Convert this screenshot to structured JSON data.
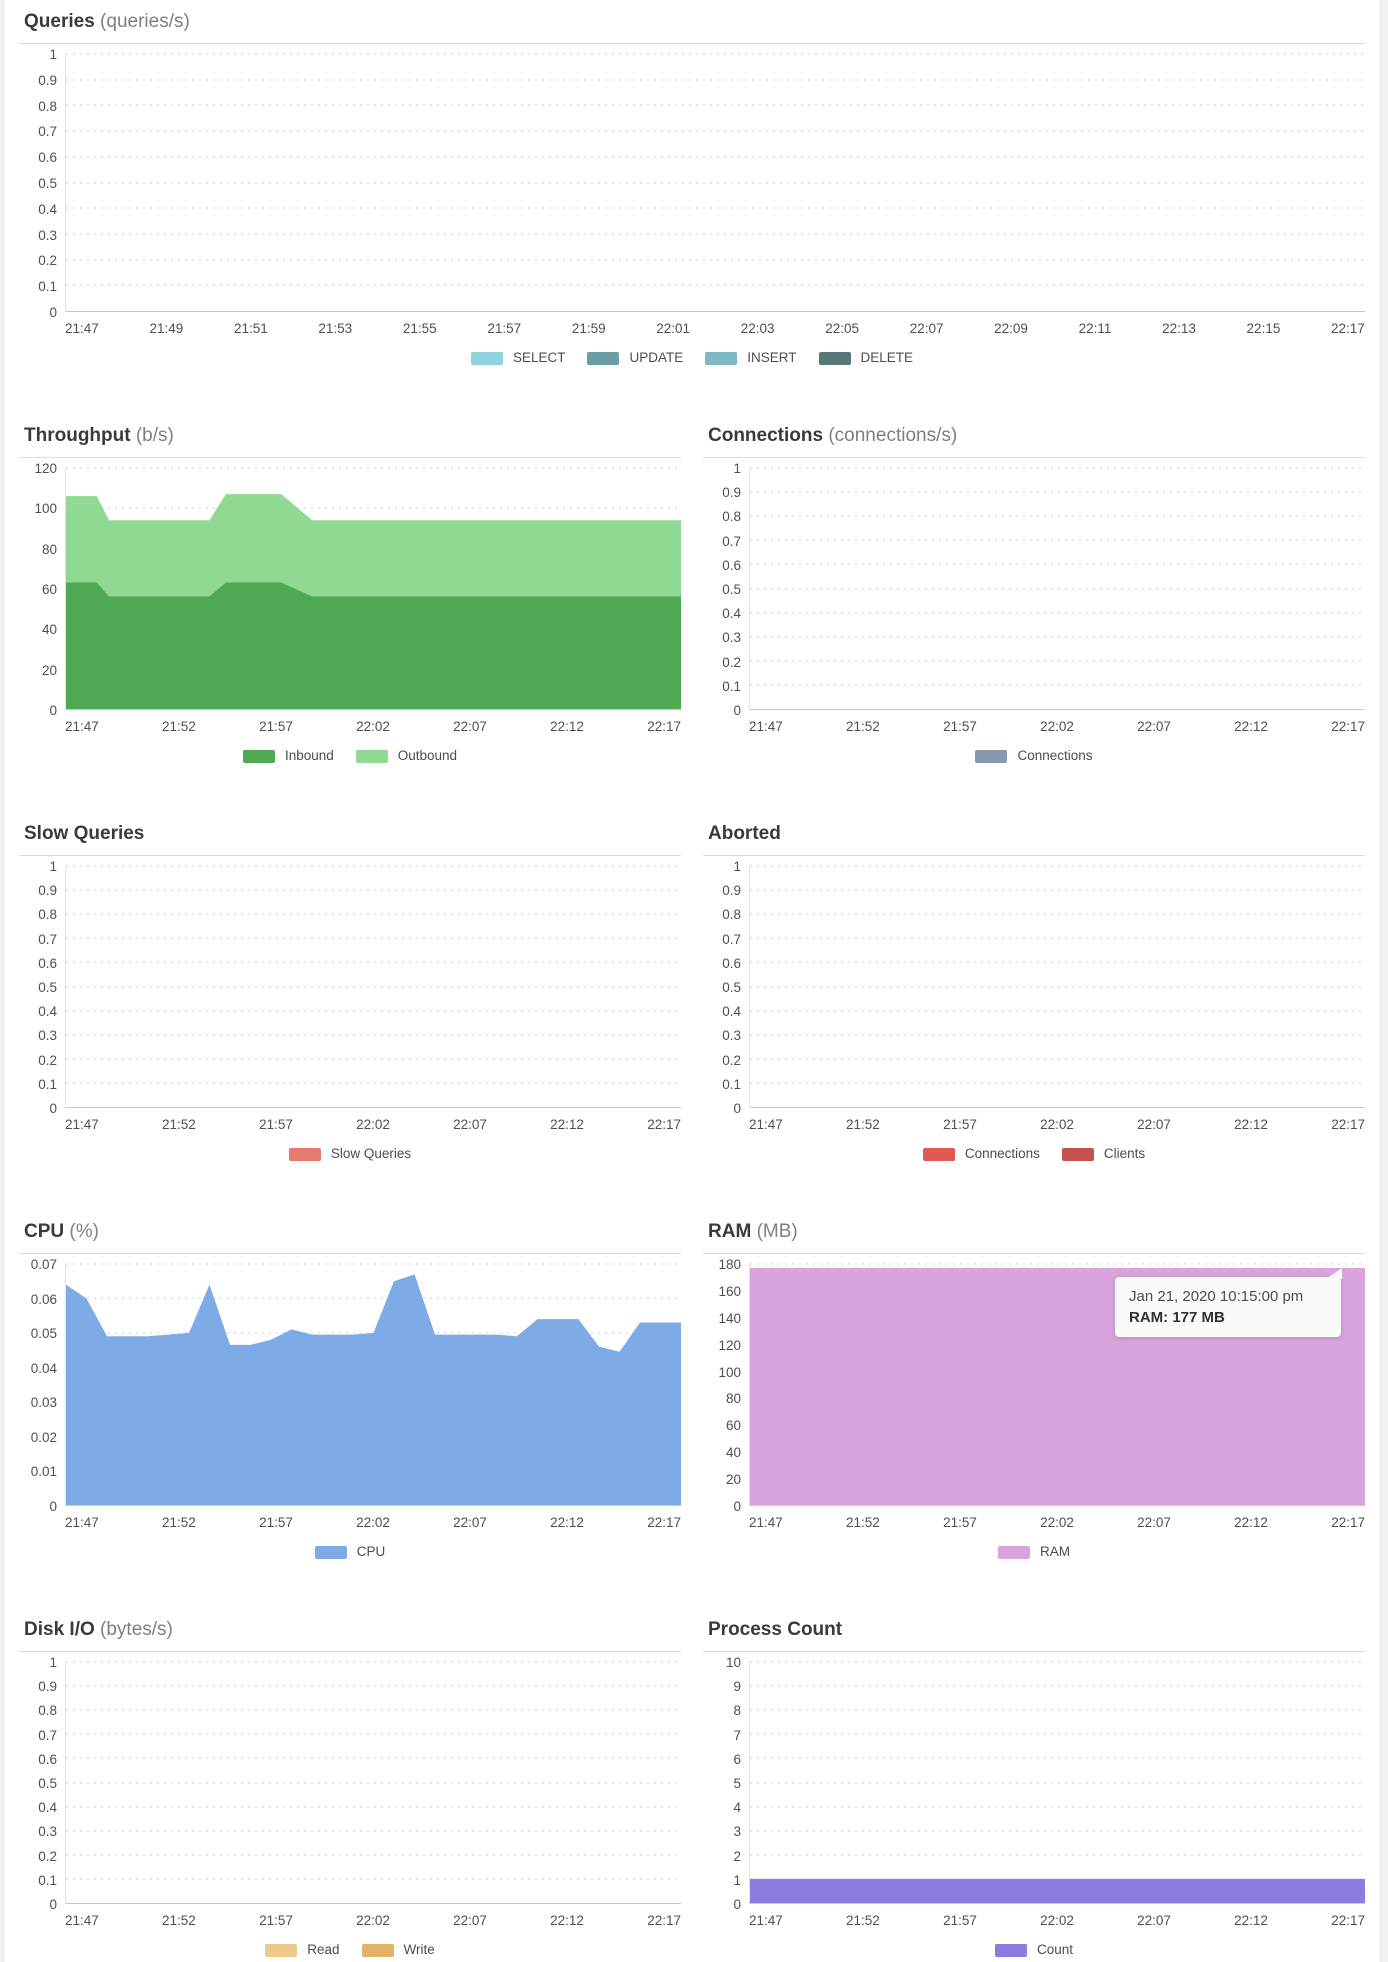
{
  "tooltip": {
    "line1": "Jan 21, 2020 10:15:00 pm",
    "line2": "RAM: 177 MB"
  },
  "chart_data": [
    {
      "id": "queries",
      "type": "area",
      "title": "Queries",
      "subtitle": "(queries/s)",
      "full_width": true,
      "grid": "dotted-horizontal",
      "legend_position": "bottom-center",
      "ylim": [
        0,
        1
      ],
      "y_ticks": [
        "1",
        "0.9",
        "0.8",
        "0.7",
        "0.6",
        "0.5",
        "0.4",
        "0.3",
        "0.2",
        "0.1",
        "0"
      ],
      "x_labels": [
        "21:47",
        "21:49",
        "21:51",
        "21:53",
        "21:55",
        "21:57",
        "21:59",
        "22:01",
        "22:03",
        "22:05",
        "22:07",
        "22:09",
        "22:11",
        "22:13",
        "22:15",
        "22:17"
      ],
      "x_range": [
        0,
        30
      ],
      "x": [],
      "series": [
        {
          "name": "SELECT",
          "color": "#8ed3dd",
          "values": []
        },
        {
          "name": "UPDATE",
          "color": "#6b9da6",
          "values": []
        },
        {
          "name": "INSERT",
          "color": "#7db9c3",
          "values": []
        },
        {
          "name": "DELETE",
          "color": "#587779",
          "values": []
        }
      ]
    },
    {
      "id": "throughput",
      "type": "area",
      "title": "Throughput",
      "subtitle": "(b/s)",
      "stacked": true,
      "grid": "dotted-horizontal",
      "legend_position": "bottom-center",
      "ylim": [
        0,
        120
      ],
      "y_ticks": [
        "120",
        "100",
        "80",
        "60",
        "40",
        "20",
        "0"
      ],
      "x_labels": [
        "21:47",
        "21:52",
        "21:57",
        "22:02",
        "22:07",
        "22:12",
        "22:17"
      ],
      "x_range": [
        0,
        30
      ],
      "x": [
        0,
        1.5,
        2.1,
        7,
        7.8,
        10.5,
        12,
        30
      ],
      "series": [
        {
          "name": "Inbound",
          "color": "#4fa953",
          "values": [
            63,
            63,
            56,
            56,
            63,
            63,
            56,
            56
          ]
        },
        {
          "name": "Outbound",
          "color": "#8fd992",
          "values": [
            43,
            43,
            38,
            38,
            44,
            44,
            38,
            38
          ]
        }
      ]
    },
    {
      "id": "connections",
      "type": "area",
      "title": "Connections",
      "subtitle": "(connections/s)",
      "grid": "dotted-horizontal",
      "legend_position": "bottom-center",
      "ylim": [
        0,
        1
      ],
      "y_ticks": [
        "1",
        "0.9",
        "0.8",
        "0.7",
        "0.6",
        "0.5",
        "0.4",
        "0.3",
        "0.2",
        "0.1",
        "0"
      ],
      "x_labels": [
        "21:47",
        "21:52",
        "21:57",
        "22:02",
        "22:07",
        "22:12",
        "22:17"
      ],
      "x_range": [
        0,
        30
      ],
      "x": [],
      "series": [
        {
          "name": "Connections",
          "color": "#8799ad",
          "values": []
        }
      ]
    },
    {
      "id": "slow_queries",
      "type": "area",
      "title": "Slow Queries",
      "subtitle": "",
      "grid": "dotted-horizontal",
      "legend_position": "bottom-center",
      "ylim": [
        0,
        1
      ],
      "y_ticks": [
        "1",
        "0.9",
        "0.8",
        "0.7",
        "0.6",
        "0.5",
        "0.4",
        "0.3",
        "0.2",
        "0.1",
        "0"
      ],
      "x_labels": [
        "21:47",
        "21:52",
        "21:57",
        "22:02",
        "22:07",
        "22:12",
        "22:17"
      ],
      "x_range": [
        0,
        30
      ],
      "x": [],
      "series": [
        {
          "name": "Slow Queries",
          "color": "#e87970",
          "values": []
        }
      ]
    },
    {
      "id": "aborted",
      "type": "area",
      "title": "Aborted",
      "subtitle": "",
      "grid": "dotted-horizontal",
      "legend_position": "bottom-center",
      "ylim": [
        0,
        1
      ],
      "y_ticks": [
        "1",
        "0.9",
        "0.8",
        "0.7",
        "0.6",
        "0.5",
        "0.4",
        "0.3",
        "0.2",
        "0.1",
        "0"
      ],
      "x_labels": [
        "21:47",
        "21:52",
        "21:57",
        "22:02",
        "22:07",
        "22:12",
        "22:17"
      ],
      "x_range": [
        0,
        30
      ],
      "x": [],
      "series": [
        {
          "name": "Connections",
          "color": "#e25853",
          "values": []
        },
        {
          "name": "Clients",
          "color": "#c4524e",
          "values": []
        }
      ]
    },
    {
      "id": "cpu",
      "type": "area",
      "title": "CPU",
      "subtitle": "(%)",
      "grid": "dotted-horizontal",
      "legend_position": "bottom-center",
      "ylim": [
        0,
        0.07
      ],
      "y_ticks": [
        "0.07",
        "0.06",
        "0.05",
        "0.04",
        "0.03",
        "0.02",
        "0.01",
        "0"
      ],
      "x_labels": [
        "21:47",
        "21:52",
        "21:57",
        "22:02",
        "22:07",
        "22:12",
        "22:17"
      ],
      "x_range": [
        0,
        30
      ],
      "x": [
        0,
        1,
        2,
        3,
        4,
        5,
        6,
        7,
        8,
        9,
        10,
        11,
        12,
        13,
        14,
        15,
        16,
        17,
        18,
        19,
        20,
        21,
        22,
        23,
        24,
        25,
        26,
        27,
        28,
        29,
        30
      ],
      "series": [
        {
          "name": "CPU",
          "color": "#7dabe5",
          "values": [
            0.064,
            0.06,
            0.049,
            0.049,
            0.049,
            0.0495,
            0.05,
            0.064,
            0.0465,
            0.0465,
            0.048,
            0.051,
            0.0495,
            0.0495,
            0.0495,
            0.05,
            0.065,
            0.067,
            0.0495,
            0.0495,
            0.0495,
            0.0495,
            0.049,
            0.054,
            0.054,
            0.054,
            0.046,
            0.0445,
            0.053,
            0.053,
            0.053
          ]
        }
      ]
    },
    {
      "id": "ram",
      "type": "area",
      "title": "RAM",
      "subtitle": "(MB)",
      "grid": "dotted-horizontal",
      "legend_position": "bottom-center",
      "ylim": [
        0,
        180
      ],
      "y_ticks": [
        "180",
        "160",
        "140",
        "120",
        "100",
        "80",
        "60",
        "40",
        "20",
        "0"
      ],
      "x_labels": [
        "21:47",
        "21:52",
        "21:57",
        "22:02",
        "22:07",
        "22:12",
        "22:17"
      ],
      "x_range": [
        0,
        30
      ],
      "x": [
        0,
        30
      ],
      "series": [
        {
          "name": "RAM",
          "color": "#d9a3de",
          "values": [
            177,
            177
          ]
        }
      ]
    },
    {
      "id": "disk_io",
      "type": "area",
      "title": "Disk I/O",
      "subtitle": "(bytes/s)",
      "grid": "dotted-horizontal",
      "legend_position": "bottom-center",
      "ylim": [
        0,
        1
      ],
      "y_ticks": [
        "1",
        "0.9",
        "0.8",
        "0.7",
        "0.6",
        "0.5",
        "0.4",
        "0.3",
        "0.2",
        "0.1",
        "0"
      ],
      "x_labels": [
        "21:47",
        "21:52",
        "21:57",
        "22:02",
        "22:07",
        "22:12",
        "22:17"
      ],
      "x_range": [
        0,
        30
      ],
      "x": [],
      "series": [
        {
          "name": "Read",
          "color": "#eec98b",
          "values": []
        },
        {
          "name": "Write",
          "color": "#e3b264",
          "values": []
        }
      ]
    },
    {
      "id": "process_count",
      "type": "area",
      "title": "Process Count",
      "subtitle": "",
      "grid": "dotted-horizontal",
      "legend_position": "bottom-center",
      "ylim": [
        0,
        10
      ],
      "y_ticks": [
        "10",
        "9",
        "8",
        "7",
        "6",
        "5",
        "4",
        "3",
        "2",
        "1",
        "0"
      ],
      "x_labels": [
        "21:47",
        "21:52",
        "21:57",
        "22:02",
        "22:07",
        "22:12",
        "22:17"
      ],
      "x_range": [
        0,
        30
      ],
      "x": [
        0,
        30
      ],
      "series": [
        {
          "name": "Count",
          "color": "#8a7ce0",
          "values": [
            1,
            1
          ]
        }
      ]
    }
  ]
}
